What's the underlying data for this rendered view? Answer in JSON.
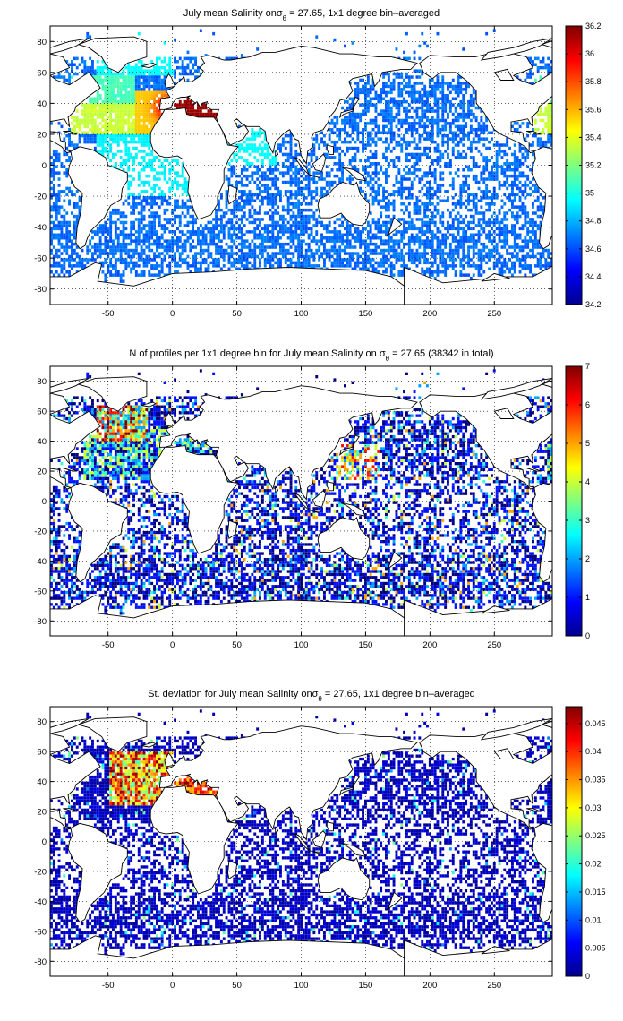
{
  "chart_data": [
    {
      "type": "heatmap",
      "title": "July mean Salinity on σθ = 27.65, 1x1 degree bin–averaged",
      "title_parts": {
        "prefix": "July mean Salinity on",
        "sigma": "σ",
        "subscript": "θ",
        "suffix": " = 27.65, 1x1 degree bin–averaged"
      },
      "x_ticks": [
        "-50",
        "0",
        "50",
        "100",
        "150",
        "200",
        "250"
      ],
      "y_ticks": [
        "80",
        "60",
        "40",
        "20",
        "0",
        "-20",
        "-40",
        "-60",
        "-80"
      ],
      "xlim": [
        -95,
        295
      ],
      "ylim": [
        -90,
        90
      ],
      "colorbar": {
        "min": 34.2,
        "max": 36.2,
        "ticks": [
          "36.2",
          "36",
          "35.8",
          "35.6",
          "35.4",
          "35.2",
          "35",
          "34.8",
          "34.6",
          "34.4",
          "34.2"
        ]
      },
      "grid": true,
      "colormap": "jet"
    },
    {
      "type": "heatmap",
      "title": "N of profiles per 1x1 degree bin for July mean Salinity on σθ = 27.65 (38342 in total)",
      "title_parts": {
        "prefix": "N of profiles per 1x1 degree bin for July mean Salinity on ",
        "sigma": "σ",
        "subscript": "θ",
        "suffix": " = 27.65 (38342 in total)"
      },
      "x_ticks": [
        "-50",
        "0",
        "50",
        "100",
        "150",
        "200",
        "250"
      ],
      "y_ticks": [
        "80",
        "60",
        "40",
        "20",
        "0",
        "-20",
        "-40",
        "-60",
        "-80"
      ],
      "xlim": [
        -95,
        295
      ],
      "ylim": [
        -90,
        90
      ],
      "colorbar": {
        "min": 0,
        "max": 7,
        "ticks": [
          "7",
          "6",
          "5",
          "4",
          "3",
          "2",
          "1",
          "0"
        ]
      },
      "total_profiles": 38342,
      "grid": true,
      "colormap": "jet"
    },
    {
      "type": "heatmap",
      "title": "St. deviation for July mean Salinity on σθ = 27.65, 1x1 degree bin–averaged",
      "title_parts": {
        "prefix": "St. deviation for July mean Salinity on",
        "sigma": "σ",
        "subscript": "θ",
        "suffix": " = 27.65, 1x1 degree bin–averaged"
      },
      "x_ticks": [
        "-50",
        "0",
        "50",
        "100",
        "150",
        "200",
        "250"
      ],
      "y_ticks": [
        "80",
        "60",
        "40",
        "20",
        "0",
        "-20",
        "-40",
        "-60",
        "-80"
      ],
      "xlim": [
        -95,
        295
      ],
      "ylim": [
        -90,
        90
      ],
      "colorbar": {
        "min": 0,
        "max": 0.048,
        "ticks": [
          "0.045",
          "0.04",
          "0.035",
          "0.03",
          "0.025",
          "0.02",
          "0.015",
          "0.01",
          "0.005",
          "0"
        ]
      },
      "grid": true,
      "colormap": "jet"
    }
  ]
}
